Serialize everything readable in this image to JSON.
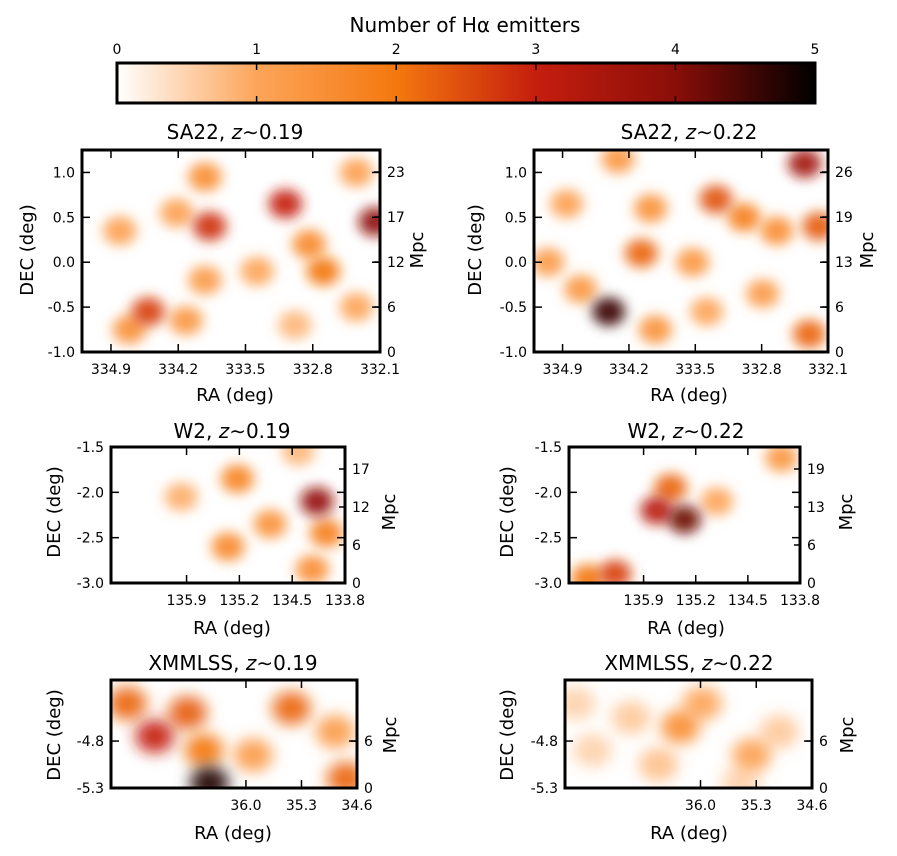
{
  "chart_data": [
    {
      "type": "colorbar",
      "title": "Number of Hα emitters",
      "ticks": [
        "0",
        "1",
        "2",
        "3",
        "4",
        "5"
      ],
      "range": [
        0,
        5
      ],
      "colormap": [
        "#ffffff",
        "#fda55a",
        "#f4780f",
        "#c51e0e",
        "#8a0e09",
        "#000000"
      ]
    },
    {
      "type": "heatmap",
      "title": {
        "field": "SA22, ",
        "z": "z",
        "rest": "∼0.19"
      },
      "xlabel": "RA (deg)",
      "ylabel": "DEC (deg)",
      "y2label": "Mpc",
      "xticks": [
        "334.9",
        "334.2",
        "333.5",
        "332.8",
        "332.1"
      ],
      "yticks": [
        "1.0",
        "0.5",
        "0.0",
        "-0.5",
        "-1.0"
      ],
      "y2ticks": [
        "23",
        "17",
        "12",
        "6",
        "0"
      ],
      "blobs": [
        {
          "ra": 334.55,
          "dec": -0.55,
          "count": 2.6
        },
        {
          "ra": 334.75,
          "dec": -0.75,
          "count": 1.4
        },
        {
          "ra": 334.15,
          "dec": -0.65,
          "count": 1.3
        },
        {
          "ra": 334.85,
          "dec": 0.35,
          "count": 1.1
        },
        {
          "ra": 334.25,
          "dec": 0.55,
          "count": 1.1
        },
        {
          "ra": 333.95,
          "dec": 0.95,
          "count": 1.5
        },
        {
          "ra": 333.9,
          "dec": 0.4,
          "count": 2.8
        },
        {
          "ra": 333.95,
          "dec": -0.2,
          "count": 1.2
        },
        {
          "ra": 333.4,
          "dec": -0.1,
          "count": 1.0
        },
        {
          "ra": 333.1,
          "dec": 0.65,
          "count": 3.0
        },
        {
          "ra": 332.85,
          "dec": 0.2,
          "count": 1.6
        },
        {
          "ra": 332.7,
          "dec": -0.1,
          "count": 2.0
        },
        {
          "ra": 332.35,
          "dec": 1.0,
          "count": 1.1
        },
        {
          "ra": 332.15,
          "dec": 0.45,
          "count": 3.9
        },
        {
          "ra": 332.35,
          "dec": -0.5,
          "count": 1.0
        },
        {
          "ra": 333.0,
          "dec": -0.7,
          "count": 0.8
        }
      ]
    },
    {
      "type": "heatmap",
      "title": {
        "field": "SA22, ",
        "z": "z",
        "rest": "∼0.22"
      },
      "xlabel": "RA (deg)",
      "ylabel": "DEC (deg)",
      "y2label": "Mpc",
      "xticks": [
        "334.9",
        "334.2",
        "333.5",
        "332.8",
        "332.1"
      ],
      "yticks": [
        "1.0",
        "0.5",
        "0.0",
        "-0.5",
        "-1.0"
      ],
      "y2ticks": [
        "26",
        "19",
        "13",
        "6",
        "0"
      ],
      "blobs": [
        {
          "ra": 334.45,
          "dec": -0.55,
          "count": 4.6
        },
        {
          "ra": 334.75,
          "dec": -0.3,
          "count": 1.3
        },
        {
          "ra": 335.1,
          "dec": 0.0,
          "count": 1.2
        },
        {
          "ra": 334.9,
          "dec": 0.65,
          "count": 1.1
        },
        {
          "ra": 334.35,
          "dec": 1.15,
          "count": 1.3
        },
        {
          "ra": 334.0,
          "dec": 0.6,
          "count": 1.4
        },
        {
          "ra": 333.95,
          "dec": -0.75,
          "count": 1.4
        },
        {
          "ra": 334.1,
          "dec": 0.1,
          "count": 2.2
        },
        {
          "ra": 333.55,
          "dec": 0.0,
          "count": 1.3
        },
        {
          "ra": 333.3,
          "dec": 0.7,
          "count": 2.4
        },
        {
          "ra": 333.0,
          "dec": 0.5,
          "count": 1.8
        },
        {
          "ra": 332.65,
          "dec": 0.35,
          "count": 1.5
        },
        {
          "ra": 332.35,
          "dec": 1.1,
          "count": 3.6
        },
        {
          "ra": 332.2,
          "dec": 0.4,
          "count": 2.3
        },
        {
          "ra": 332.8,
          "dec": -0.35,
          "count": 1.2
        },
        {
          "ra": 332.3,
          "dec": -0.8,
          "count": 2.2
        },
        {
          "ra": 333.4,
          "dec": -0.55,
          "count": 1.0
        }
      ]
    },
    {
      "type": "heatmap",
      "title": {
        "field": "W2, ",
        "z": "z",
        "rest": "∼0.19"
      },
      "xlabel": "RA (deg)",
      "ylabel": "DEC (deg)",
      "y2label": "Mpc",
      "xticks": [
        "135.9",
        "135.2",
        "134.5",
        "133.8"
      ],
      "yticks": [
        "-1.5",
        "-2.0",
        "-2.5",
        "-3.0"
      ],
      "y2ticks": [
        "17",
        "12",
        "6",
        "0"
      ],
      "blobs": [
        {
          "ra": 135.55,
          "dec": -2.05,
          "count": 0.9
        },
        {
          "ra": 134.95,
          "dec": -1.85,
          "count": 1.7
        },
        {
          "ra": 135.05,
          "dec": -2.6,
          "count": 1.6
        },
        {
          "ra": 134.6,
          "dec": -2.35,
          "count": 1.4
        },
        {
          "ra": 134.1,
          "dec": -2.1,
          "count": 3.8
        },
        {
          "ra": 134.0,
          "dec": -2.45,
          "count": 1.8
        },
        {
          "ra": 134.15,
          "dec": -2.85,
          "count": 1.5
        },
        {
          "ra": 134.3,
          "dec": -1.55,
          "count": 0.8
        }
      ]
    },
    {
      "type": "heatmap",
      "title": {
        "field": "W2, ",
        "z": "z",
        "rest": "∼0.22"
      },
      "xlabel": "RA (deg)",
      "ylabel": "DEC (deg)",
      "y2label": "Mpc",
      "xticks": [
        "135.9",
        "135.2",
        "134.5",
        "133.8"
      ],
      "yticks": [
        "-1.5",
        "-2.0",
        "-2.5",
        "-3.0"
      ],
      "y2ticks": [
        "19",
        "13",
        "6",
        "0"
      ],
      "blobs": [
        {
          "ra": 135.35,
          "dec": -2.2,
          "count": 3.2
        },
        {
          "ra": 135.05,
          "dec": -2.3,
          "count": 4.2
        },
        {
          "ra": 135.2,
          "dec": -1.95,
          "count": 2.2
        },
        {
          "ra": 135.8,
          "dec": -2.9,
          "count": 2.6
        },
        {
          "ra": 136.1,
          "dec": -2.95,
          "count": 2.0
        },
        {
          "ra": 134.7,
          "dec": -2.1,
          "count": 1.0
        },
        {
          "ra": 134.0,
          "dec": -1.62,
          "count": 1.3
        }
      ]
    },
    {
      "type": "heatmap",
      "title": {
        "field": "XMMLSS, ",
        "z": "z",
        "rest": "∼0.19"
      },
      "xlabel": "RA (deg)",
      "ylabel": "DEC (deg)",
      "y2label": "Mpc",
      "xticks": [
        "36.0",
        "35.3",
        "34.6"
      ],
      "yticks": [
        "-4.8",
        "-5.3"
      ],
      "y2ticks": [
        "6",
        "0"
      ],
      "blobs": [
        {
          "ra": 36.0,
          "dec": -4.4,
          "count": 2.2
        },
        {
          "ra": 35.75,
          "dec": -4.75,
          "count": 3.0
        },
        {
          "ra": 35.45,
          "dec": -4.5,
          "count": 2.3
        },
        {
          "ra": 35.3,
          "dec": -4.9,
          "count": 2.0
        },
        {
          "ra": 35.25,
          "dec": -5.25,
          "count": 4.8
        },
        {
          "ra": 34.85,
          "dec": -4.95,
          "count": 1.2
        },
        {
          "ra": 34.5,
          "dec": -4.45,
          "count": 2.2
        },
        {
          "ra": 34.1,
          "dec": -4.7,
          "count": 1.2
        },
        {
          "ra": 34.0,
          "dec": -5.2,
          "count": 2.2
        }
      ]
    },
    {
      "type": "heatmap",
      "title": {
        "field": "XMMLSS, ",
        "z": "z",
        "rest": "∼0.22"
      },
      "xlabel": "RA (deg)",
      "ylabel": "DEC (deg)",
      "y2label": "Mpc",
      "xticks": [
        "36.0",
        "35.3",
        "34.6"
      ],
      "yticks": [
        "-4.8",
        "-5.3"
      ],
      "y2ticks": [
        "6",
        "0"
      ],
      "blobs": [
        {
          "ra": 36.05,
          "dec": -4.4,
          "count": 0.5
        },
        {
          "ra": 35.9,
          "dec": -4.9,
          "count": 0.5
        },
        {
          "ra": 35.55,
          "dec": -4.55,
          "count": 0.6
        },
        {
          "ra": 35.1,
          "dec": -4.65,
          "count": 1.5
        },
        {
          "ra": 34.9,
          "dec": -4.4,
          "count": 1.0
        },
        {
          "ra": 35.3,
          "dec": -5.05,
          "count": 0.7
        },
        {
          "ra": 34.45,
          "dec": -4.95,
          "count": 1.1
        },
        {
          "ra": 34.2,
          "dec": -4.7,
          "count": 0.6
        },
        {
          "ra": 34.55,
          "dec": -5.25,
          "count": 0.5
        }
      ]
    }
  ]
}
